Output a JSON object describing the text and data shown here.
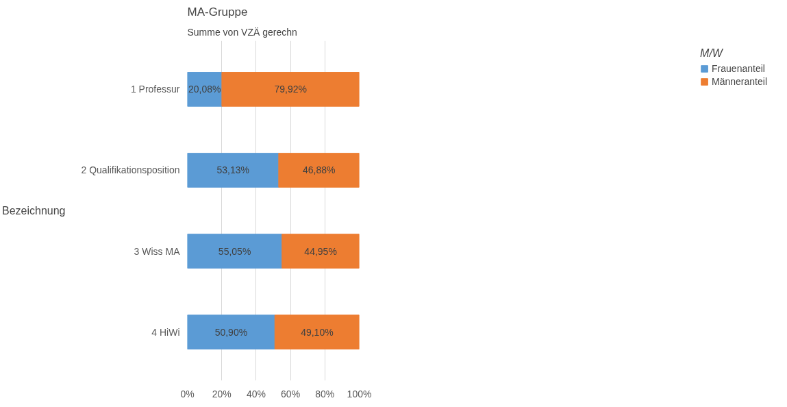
{
  "chart_data": {
    "type": "bar",
    "orientation": "horizontal",
    "stacked": true,
    "title": "MA-Gruppe",
    "subtitle": "Summe von VZÄ gerechn",
    "ylabel": "Bezeichnung",
    "legend_title": "M/W",
    "categories": [
      "1 Professur",
      "2 Qualifikationsposition",
      "3 Wiss MA",
      "4 HiWi"
    ],
    "series": [
      {
        "name": "Frauenanteil",
        "color": "#5b9bd5",
        "values": [
          20.08,
          53.13,
          55.05,
          50.9
        ],
        "value_labels": [
          "20,08%",
          "53,13%",
          "55,05%",
          "50,90%"
        ]
      },
      {
        "name": "Männeranteil",
        "color": "#ed7d31",
        "values": [
          79.92,
          46.88,
          44.95,
          49.1
        ],
        "value_labels": [
          "79,92%",
          "46,88%",
          "44,95%",
          "49,10%"
        ]
      }
    ],
    "xlim": [
      0,
      100
    ],
    "xticks": [
      {
        "value": 0,
        "label": "0%"
      },
      {
        "value": 20,
        "label": "20%"
      },
      {
        "value": 40,
        "label": "40%"
      },
      {
        "value": 60,
        "label": "60%"
      },
      {
        "value": 80,
        "label": "80%"
      },
      {
        "value": 100,
        "label": "100%"
      }
    ],
    "grid": "x",
    "legend": "right"
  }
}
